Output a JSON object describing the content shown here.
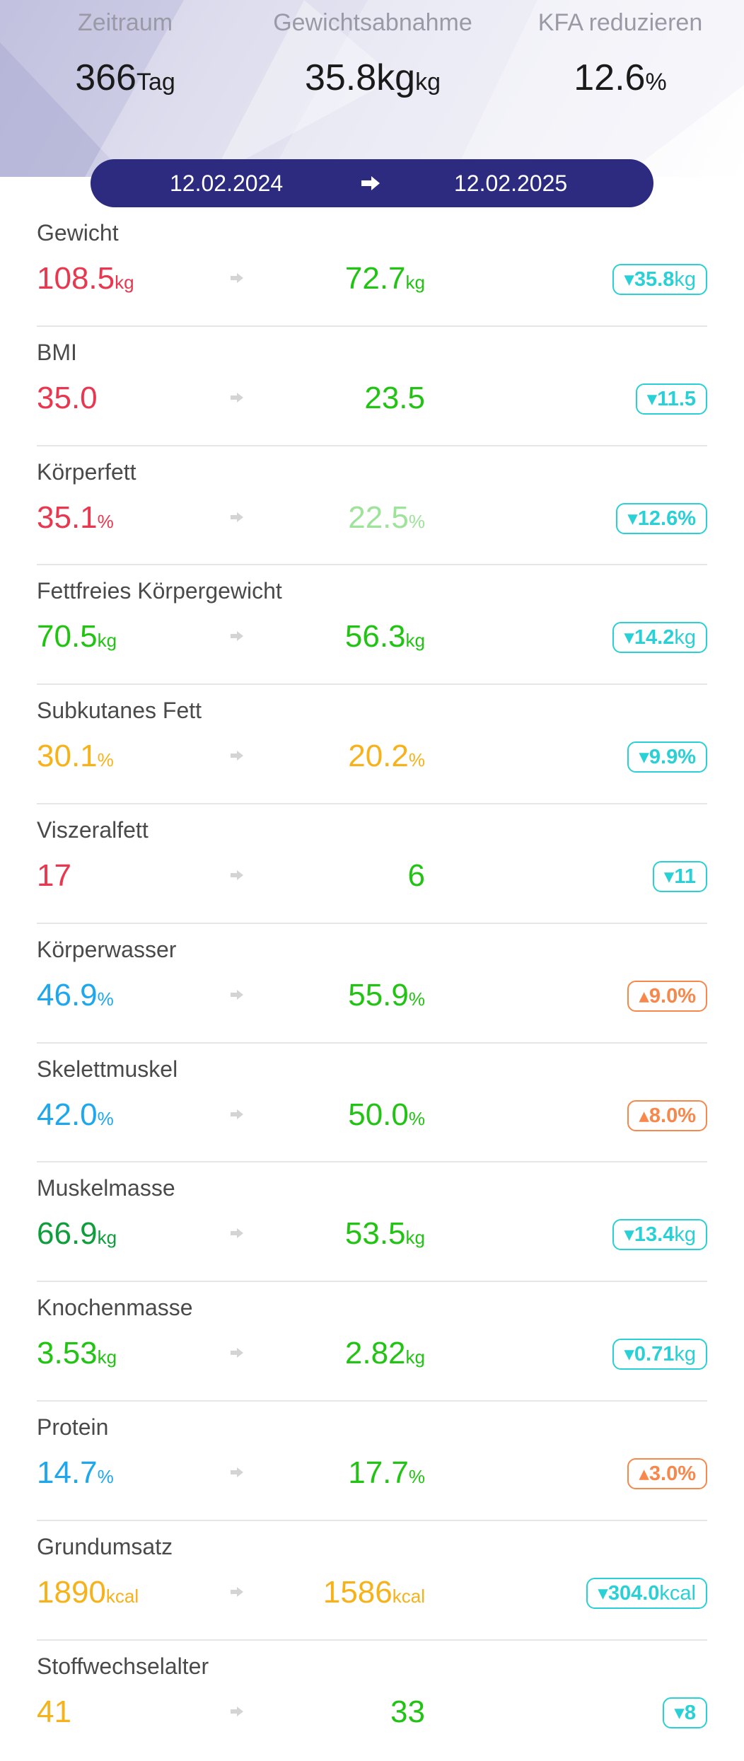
{
  "summary": {
    "period": {
      "label": "Zeitraum",
      "value": "366",
      "unit": "Tag"
    },
    "weight_loss": {
      "label": "Gewichtsabnahme",
      "value": "35.8kg",
      "unit": "kg"
    },
    "fat_reduction": {
      "label": "KFA reduzieren",
      "value": "12.6",
      "unit": "%"
    }
  },
  "date_range": {
    "start": "12.02.2024",
    "end": "12.02.2025",
    "arrow_icon": "arrow-right-icon"
  },
  "colors": {
    "header_bar": "#2d2b7f",
    "red": "#e8374f",
    "green": "#22c414",
    "light_green": "#9ee39a",
    "orange": "#f7b21a",
    "blue": "#1ca7ef",
    "dark_green": "#0e9e3c",
    "teal_delta": "#29d0d6",
    "orange_delta": "#f7874a"
  },
  "metrics": [
    {
      "label": "Gewicht",
      "from": "108.5",
      "from_unit": "kg",
      "from_color": "#e8374f",
      "to": "72.7",
      "to_unit": "kg",
      "to_color": "#22c414",
      "delta_arrow": "▾",
      "delta": "35.8",
      "delta_unit": "kg",
      "delta_color": "#29d0d6"
    },
    {
      "label": "BMI",
      "from": "35.0",
      "from_unit": "",
      "from_color": "#e8374f",
      "to": "23.5",
      "to_unit": "",
      "to_color": "#22c414",
      "delta_arrow": "▾",
      "delta": "11.5",
      "delta_unit": "",
      "delta_color": "#29d0d6"
    },
    {
      "label": "Körperfett",
      "from": "35.1",
      "from_unit": "%",
      "from_color": "#e8374f",
      "to": "22.5",
      "to_unit": "%",
      "to_color": "#9ee39a",
      "delta_arrow": "▾",
      "delta": "12.6%",
      "delta_unit": "",
      "delta_color": "#29d0d6"
    },
    {
      "label": "Fettfreies Körpergewicht",
      "from": "70.5",
      "from_unit": "kg",
      "from_color": "#22c414",
      "to": "56.3",
      "to_unit": "kg",
      "to_color": "#22c414",
      "delta_arrow": "▾",
      "delta": "14.2",
      "delta_unit": "kg",
      "delta_color": "#29d0d6"
    },
    {
      "label": "Subkutanes Fett",
      "from": "30.1",
      "from_unit": "%",
      "from_color": "#f7b21a",
      "to": "20.2",
      "to_unit": "%",
      "to_color": "#f7b21a",
      "delta_arrow": "▾",
      "delta": "9.9%",
      "delta_unit": "",
      "delta_color": "#29d0d6"
    },
    {
      "label": "Viszeralfett",
      "from": "17",
      "from_unit": "",
      "from_color": "#e8374f",
      "to": "6",
      "to_unit": "",
      "to_color": "#22c414",
      "delta_arrow": "▾",
      "delta": "11",
      "delta_unit": "",
      "delta_color": "#29d0d6"
    },
    {
      "label": "Körperwasser",
      "from": "46.9",
      "from_unit": "%",
      "from_color": "#1ca7ef",
      "to": "55.9",
      "to_unit": "%",
      "to_color": "#22c414",
      "delta_arrow": "▴",
      "delta": "9.0%",
      "delta_unit": "",
      "delta_color": "#f7874a"
    },
    {
      "label": "Skelettmuskel",
      "from": "42.0",
      "from_unit": "%",
      "from_color": "#1ca7ef",
      "to": "50.0",
      "to_unit": "%",
      "to_color": "#22c414",
      "delta_arrow": "▴",
      "delta": "8.0%",
      "delta_unit": "",
      "delta_color": "#f7874a"
    },
    {
      "label": "Muskelmasse",
      "from": "66.9",
      "from_unit": "kg",
      "from_color": "#0e9e3c",
      "to": "53.5",
      "to_unit": "kg",
      "to_color": "#22c414",
      "delta_arrow": "▾",
      "delta": "13.4",
      "delta_unit": "kg",
      "delta_color": "#29d0d6"
    },
    {
      "label": "Knochenmasse",
      "from": "3.53",
      "from_unit": "kg",
      "from_color": "#22c414",
      "to": "2.82",
      "to_unit": "kg",
      "to_color": "#22c414",
      "delta_arrow": "▾",
      "delta": "0.71",
      "delta_unit": "kg",
      "delta_color": "#29d0d6"
    },
    {
      "label": "Protein",
      "from": "14.7",
      "from_unit": "%",
      "from_color": "#1ca7ef",
      "to": "17.7",
      "to_unit": "%",
      "to_color": "#22c414",
      "delta_arrow": "▴",
      "delta": "3.0%",
      "delta_unit": "",
      "delta_color": "#f7874a"
    },
    {
      "label": "Grundumsatz",
      "from": "1890",
      "from_unit": "kcal",
      "from_color": "#f7b21a",
      "to": "1586",
      "to_unit": "kcal",
      "to_color": "#f7b21a",
      "delta_arrow": "▾",
      "delta": "304.0",
      "delta_unit": "kcal",
      "delta_color": "#29d0d6"
    },
    {
      "label": "Stoffwechselalter",
      "from": "41",
      "from_unit": "",
      "from_color": "#f7b21a",
      "to": "33",
      "to_unit": "",
      "to_color": "#22c414",
      "delta_arrow": "▾",
      "delta": "8",
      "delta_unit": "",
      "delta_color": "#29d0d6"
    }
  ]
}
